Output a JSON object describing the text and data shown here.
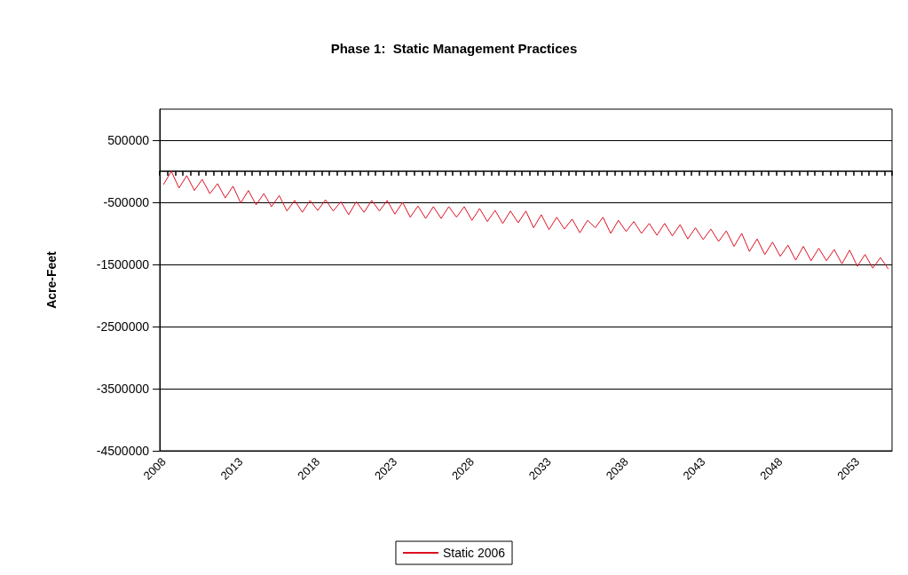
{
  "chart_data": {
    "type": "line",
    "title": "Phase 1:  Static Management Practices",
    "ylabel": "Acre-Feet",
    "categories": [
      "2008",
      null,
      null,
      null,
      null,
      null,
      null,
      null,
      null,
      null,
      "2013",
      null,
      null,
      null,
      null,
      null,
      null,
      null,
      null,
      null,
      "2018",
      null,
      null,
      null,
      null,
      null,
      null,
      null,
      null,
      null,
      "2023",
      null,
      null,
      null,
      null,
      null,
      null,
      null,
      null,
      null,
      "2028",
      null,
      null,
      null,
      null,
      null,
      null,
      null,
      null,
      null,
      "2033",
      null,
      null,
      null,
      null,
      null,
      null,
      null,
      null,
      null,
      "2038",
      null,
      null,
      null,
      null,
      null,
      null,
      null,
      null,
      null,
      "2043",
      null,
      null,
      null,
      null,
      null,
      null,
      null,
      null,
      null,
      "2048",
      null,
      null,
      null,
      null,
      null,
      null,
      null,
      null,
      null,
      "2053",
      null,
      null,
      null,
      null
    ],
    "series": [
      {
        "name": "Static 2006",
        "color": "#dd1122",
        "values": [
          -210000,
          0,
          -270000,
          -70000,
          -310000,
          -130000,
          -360000,
          -200000,
          -430000,
          -240000,
          -510000,
          -310000,
          -540000,
          -360000,
          -570000,
          -390000,
          -640000,
          -470000,
          -660000,
          -470000,
          -630000,
          -460000,
          -640000,
          -490000,
          -700000,
          -490000,
          -660000,
          -470000,
          -640000,
          -470000,
          -690000,
          -500000,
          -740000,
          -560000,
          -760000,
          -570000,
          -760000,
          -570000,
          -740000,
          -570000,
          -790000,
          -600000,
          -810000,
          -630000,
          -840000,
          -640000,
          -830000,
          -640000,
          -910000,
          -700000,
          -940000,
          -740000,
          -930000,
          -770000,
          -990000,
          -790000,
          -910000,
          -740000,
          -1000000,
          -790000,
          -970000,
          -810000,
          -1000000,
          -840000,
          -1030000,
          -840000,
          -1040000,
          -860000,
          -1090000,
          -910000,
          -1100000,
          -930000,
          -1130000,
          -960000,
          -1210000,
          -1000000,
          -1290000,
          -1090000,
          -1340000,
          -1140000,
          -1370000,
          -1190000,
          -1430000,
          -1210000,
          -1440000,
          -1240000,
          -1440000,
          -1260000,
          -1490000,
          -1270000,
          -1530000,
          -1340000,
          -1560000,
          -1390000,
          -1570000
        ]
      }
    ],
    "ylim": [
      -4500000,
      1000000
    ],
    "yticks": [
      -4500000,
      -3500000,
      -2500000,
      -1500000,
      -500000,
      500000
    ],
    "grid": "y",
    "legend": "bottom",
    "marker": "none",
    "line_style": "solid"
  }
}
